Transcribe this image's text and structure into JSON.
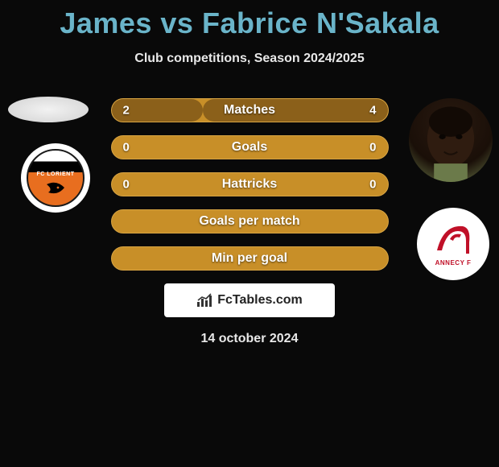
{
  "title": "James vs Fabrice N'Sakala",
  "subtitle": "Club competitions, Season 2024/2025",
  "date": "14 october 2024",
  "brand": "FcTables.com",
  "colors": {
    "background": "#090909",
    "title": "#6ab4c9",
    "text": "#e8e8e8",
    "bar_bg": "#c88f28",
    "bar_fill": "#8b601a",
    "bar_border": "#d8a442",
    "white": "#ffffff"
  },
  "rows": [
    {
      "label": "Matches",
      "left_val": "2",
      "right_val": "4",
      "left_pct": 33,
      "right_pct": 67
    },
    {
      "label": "Goals",
      "left_val": "0",
      "right_val": "0",
      "left_pct": 0,
      "right_pct": 0
    },
    {
      "label": "Hattricks",
      "left_val": "0",
      "right_val": "0",
      "left_pct": 0,
      "right_pct": 0
    },
    {
      "label": "Goals per match",
      "left_val": "",
      "right_val": "",
      "left_pct": 0,
      "right_pct": 0
    },
    {
      "label": "Min per goal",
      "left_val": "",
      "right_val": "",
      "left_pct": 0,
      "right_pct": 0
    }
  ],
  "player_left": {
    "name": "James",
    "club": "FC Lorient",
    "club_label": "FC LORIENT",
    "club_primary": "#e86e1f",
    "club_secondary": "#000000"
  },
  "player_right": {
    "name": "Fabrice N'Sakala",
    "club": "Annecy FC",
    "club_label": "ANNECY F",
    "club_primary": "#c01028",
    "club_secondary": "#ffffff"
  }
}
